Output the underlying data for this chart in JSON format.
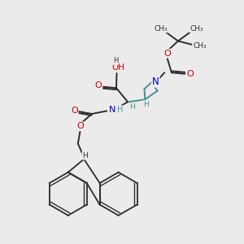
{
  "background_color": "#ebebeb",
  "bond_color": "#2d2d2d",
  "oxygen_color": "#cc0000",
  "nitrogen_color": "#0000cc",
  "teal_bond_color": "#4a9090",
  "figsize": [
    3.0,
    3.0
  ],
  "dpi": 100,
  "xlim": [
    0,
    10
  ],
  "ylim": [
    0,
    10
  ]
}
